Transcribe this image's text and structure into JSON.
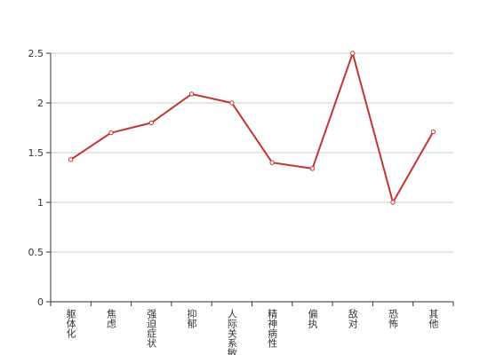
{
  "chart_data": {
    "type": "line",
    "categories": [
      "躯体化",
      "焦虑",
      "强迫症状",
      "抑郁",
      "人际关系敏感",
      "精神病性",
      "偏执",
      "敌对",
      "恐怖",
      "其他"
    ],
    "series": [
      {
        "color": "#c23531",
        "values": [
          1.43,
          1.7,
          1.8,
          2.09,
          2.0,
          1.4,
          1.34,
          2.5,
          1.0,
          1.71
        ]
      }
    ],
    "ylim": [
      0,
      2.5
    ],
    "yticks": [
      0,
      0.5,
      1,
      1.5,
      2,
      2.5
    ],
    "grid": true
  }
}
